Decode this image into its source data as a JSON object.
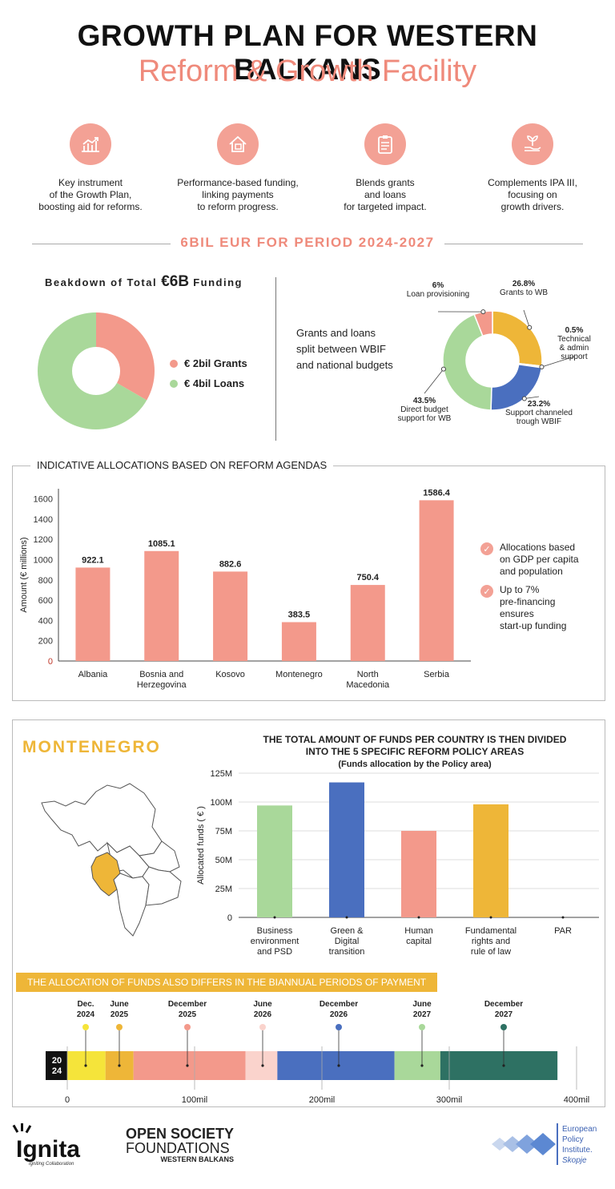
{
  "header": {
    "title": "GROWTH PLAN FOR WESTERN BALKANS",
    "subtitle": "Reform & Growth Facility"
  },
  "features": [
    {
      "icon": "chart-growth-icon",
      "text": "Key instrument\nof the Growth Plan,\nboosting aid for reforms."
    },
    {
      "icon": "house-money-icon",
      "text": "Performance-based funding,\nlinking payments\nto reform progress."
    },
    {
      "icon": "checklist-icon",
      "text": "Blends grants\nand loans\nfor targeted impact."
    },
    {
      "icon": "plant-hand-icon",
      "text": "Complements IPA III,\nfocusing on\ngrowth drivers."
    }
  ],
  "period_banner": "6BIL EUR FOR PERIOD 2024-2027",
  "breakdown": {
    "title": "Beakdown of Total",
    "title_amount": "€6B",
    "title_end": "Funding",
    "legend": [
      {
        "label": "€ 2bil Grants",
        "color": "#f3998b"
      },
      {
        "label": "€ 4bil Loans",
        "color": "#a9d89a"
      }
    ]
  },
  "split_text": "Grants and loans\nsplit between WBIF\nand national budgets",
  "chart_data": [
    {
      "type": "pie",
      "title": "Beakdown of Total €6B Funding",
      "categories": [
        "€ 2bil Grants",
        "€ 4bil Loans"
      ],
      "values": [
        2,
        4
      ],
      "colors": [
        "#f3998b",
        "#a9d89a"
      ]
    },
    {
      "type": "pie",
      "categories": [
        "Grants to WB",
        "Technical & admin support",
        "Support channeled trough WBIF",
        "Direct budget support for WB",
        "Loan provisioning"
      ],
      "values": [
        26.8,
        0.5,
        23.2,
        43.5,
        6
      ],
      "value_labels": [
        "26.8%",
        "0.5%",
        "23.2%",
        "43.5%",
        "6%"
      ],
      "colors": [
        "#eeb638",
        "#a9d89a",
        "#4a6fbf",
        "#a9d89a",
        "#f3998b"
      ]
    },
    {
      "type": "bar",
      "title": "INDICATIVE ALLOCATIONS BASED ON REFORM AGENDAS",
      "categories": [
        "Albania",
        "Bosnia and\nHerzegovina",
        "Kosovo",
        "Montenegro",
        "North\nMacedonia",
        "Serbia"
      ],
      "values": [
        922.1,
        1085.1,
        882.6,
        383.5,
        750.4,
        1586.4
      ],
      "value_labels": [
        "922.1",
        "1085.1",
        "882.6",
        "383.5",
        "750.4",
        "1586.4"
      ],
      "ylabel": "Amount (€ millions)",
      "ylim": [
        0,
        1700
      ],
      "yticks": [
        0,
        200,
        400,
        600,
        800,
        1000,
        1200,
        1400,
        1600
      ],
      "color": "#f3998b"
    },
    {
      "type": "bar",
      "title": "THE TOTAL AMOUNT OF FUNDS PER COUNTRY IS THEN DIVIDED\nINTO THE 5 SPECIFIC REFORM POLICY AREAS",
      "subtitle": "(Funds allocation by the Policy area)",
      "categories": [
        "Business\nenvironment\nand PSD",
        "Green &\nDigital\ntransition",
        "Human\ncapital",
        "Fundamental\nrights and\nrule of law",
        "PAR"
      ],
      "values": [
        97,
        117,
        75,
        98,
        0
      ],
      "colors": [
        "#a9d89a",
        "#4a6fbf",
        "#f3998b",
        "#eeb638",
        "#cccccc"
      ],
      "ylabel": "Allocated funds ( € )",
      "ylim": [
        0,
        125
      ],
      "yticks": [
        0,
        25,
        50,
        75,
        100,
        125
      ],
      "ytick_labels": [
        "0",
        "25M",
        "50M",
        "75M",
        "100M",
        "125M"
      ]
    },
    {
      "type": "bar",
      "title": "THE ALLOCATION OF FUNDS ALSO DIFFERS IN THE BIANNUAL PERIODS OF PAYMENT",
      "orientation": "stacked-horizontal",
      "xlim": [
        0,
        400
      ],
      "xticks": [
        0,
        100,
        200,
        300,
        400
      ],
      "xtick_labels": [
        "0",
        "100mil",
        "200mil",
        "300mil",
        "400mil"
      ],
      "year_label": "20\n24",
      "segments": [
        {
          "label": "Dec.\n2024",
          "start": 0,
          "end": 30,
          "color": "#f5e43a"
        },
        {
          "label": "June\n2025",
          "start": 30,
          "end": 52,
          "color": "#eeb638"
        },
        {
          "label": "December\n2025",
          "start": 52,
          "end": 140,
          "color": "#f3998b"
        },
        {
          "label": "June\n2026",
          "start": 140,
          "end": 165,
          "color": "#fad3cc"
        },
        {
          "label": "December\n2026",
          "start": 165,
          "end": 257,
          "color": "#4a6fbf"
        },
        {
          "label": "June\n2027",
          "start": 257,
          "end": 293,
          "color": "#a9d89a"
        },
        {
          "label": "December\n2027",
          "start": 293,
          "end": 385,
          "color": "#2e7163"
        }
      ]
    }
  ],
  "notes": [
    "Allocations based\non GDP per capita\nand population",
    "Up to 7%\npre-financing\nensures\nstart-up funding"
  ],
  "montenegro_label": "MONTENEGRO",
  "footer": {
    "ignita": "Ignita",
    "ignita_tag": "Igniting Collaboration",
    "osf_line1": "OPEN SOCIETY",
    "osf_line2": "FOUNDATIONS",
    "osf_line3": "WESTERN BALKANS",
    "epi_line1": "European",
    "epi_line2": "Policy",
    "epi_line3": "Institute.",
    "epi_line4": "Skopje"
  }
}
